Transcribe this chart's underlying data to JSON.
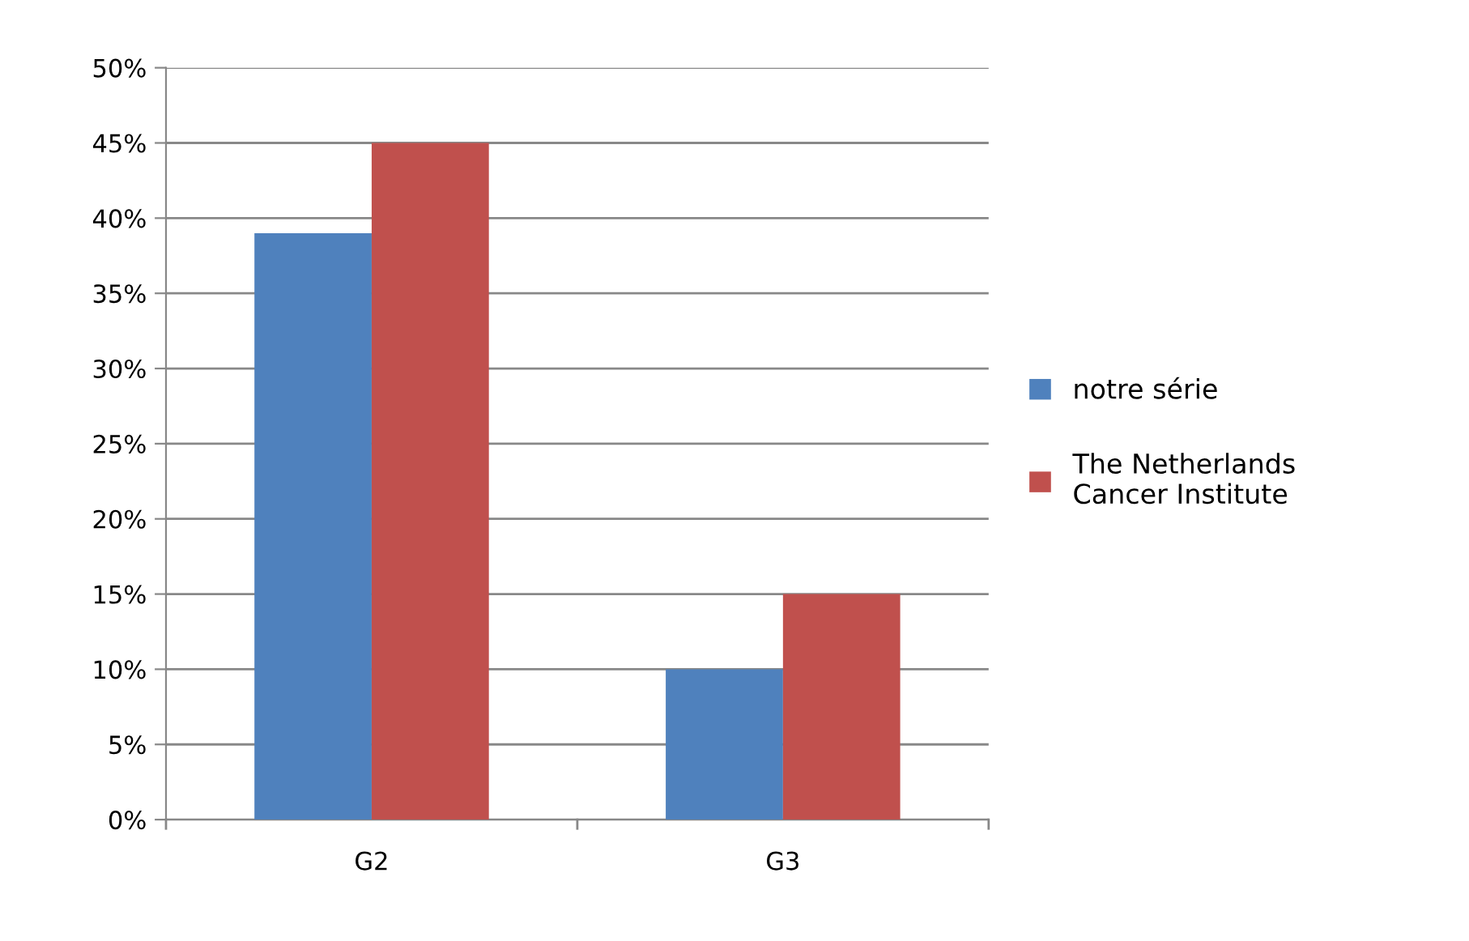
{
  "chart_data": {
    "type": "bar",
    "categories": [
      "G2",
      "G3"
    ],
    "series": [
      {
        "name": "notre série",
        "color": "#4f81bd",
        "values": [
          39,
          10
        ]
      },
      {
        "name": "The Netherlands\nCancer Institute",
        "color": "#c0504d",
        "values": [
          45,
          15
        ]
      }
    ],
    "ylim": [
      0,
      50
    ],
    "yticks": [
      {
        "value": 0,
        "label": "0%"
      },
      {
        "value": 5,
        "label": "5%"
      },
      {
        "value": 10,
        "label": "10%"
      },
      {
        "value": 15,
        "label": "15%"
      },
      {
        "value": 20,
        "label": "20%"
      },
      {
        "value": 25,
        "label": "25%"
      },
      {
        "value": 30,
        "label": "30%"
      },
      {
        "value": 35,
        "label": "35%"
      },
      {
        "value": 40,
        "label": "40%"
      },
      {
        "value": 45,
        "label": "45%"
      },
      {
        "value": 50,
        "label": "50%"
      }
    ],
    "grid": "y",
    "legend": "right"
  }
}
